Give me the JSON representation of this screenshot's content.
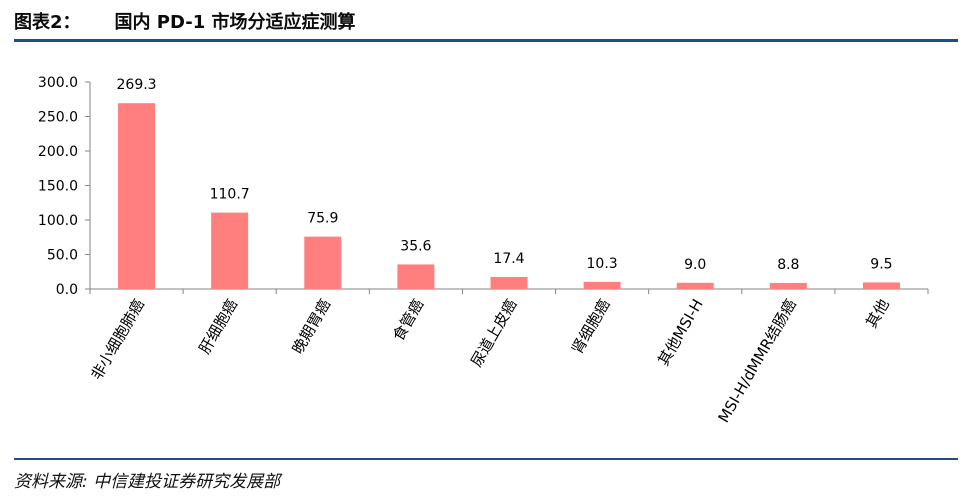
{
  "header": {
    "label": "图表2：",
    "title": "国内 PD-1 市场分适应症测算"
  },
  "footer": {
    "source": "资料来源: 中信建投证券研究发展部"
  },
  "colors": {
    "bar": "#ff7f7f",
    "rule": "#1f4e79",
    "axis": "#868686"
  },
  "chart_data": {
    "type": "bar",
    "title": "",
    "xlabel": "",
    "ylabel": "",
    "categories": [
      "非小细胞肺癌",
      "肝细胞癌",
      "晚期胃癌",
      "食管癌",
      "尿道上皮癌",
      "肾细胞癌",
      "其他MSI-H",
      "MSI-H/dMMR结肠癌",
      "其他"
    ],
    "values": [
      269.3,
      110.7,
      75.9,
      35.6,
      17.4,
      10.3,
      9.0,
      8.8,
      9.5
    ],
    "value_labels": [
      "269.3",
      "110.7",
      "75.9",
      "35.6",
      "17.4",
      "10.3",
      "9.0",
      "8.8",
      "9.5"
    ],
    "ylim": [
      0,
      300
    ],
    "yticks": [
      "0.0",
      "50.0",
      "100.0",
      "150.0",
      "200.0",
      "250.0",
      "300.0"
    ],
    "grid": false,
    "legend": "none"
  }
}
